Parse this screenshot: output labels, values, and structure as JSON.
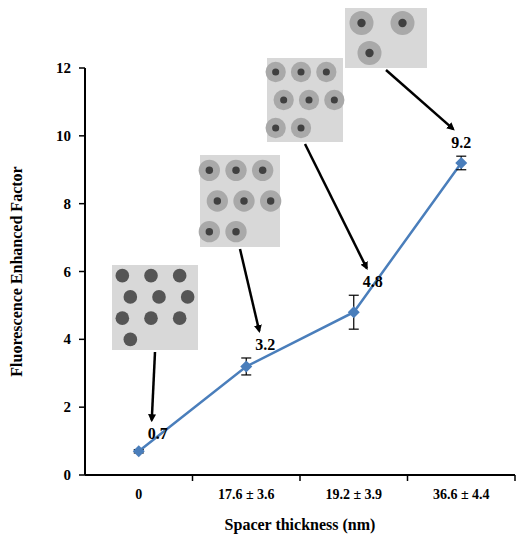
{
  "chart_data": {
    "type": "line",
    "x_label": "Spacer thickness (nm)",
    "y_label": "Fluorescence Enhanced Factor",
    "categories": [
      "0",
      "17.6 ± 3.6",
      "19.2 ± 3.9",
      "36.6 ± 4.4"
    ],
    "values": [
      0.7,
      3.2,
      4.8,
      9.2
    ],
    "errors": [
      0.05,
      0.25,
      0.5,
      0.2
    ],
    "color": "#4a7ebb",
    "marker": "diamond",
    "ylim": [
      0,
      12
    ],
    "yticks": [
      0,
      2,
      4,
      6,
      8,
      10,
      12
    ],
    "grid": false,
    "data_labels": true
  }
}
